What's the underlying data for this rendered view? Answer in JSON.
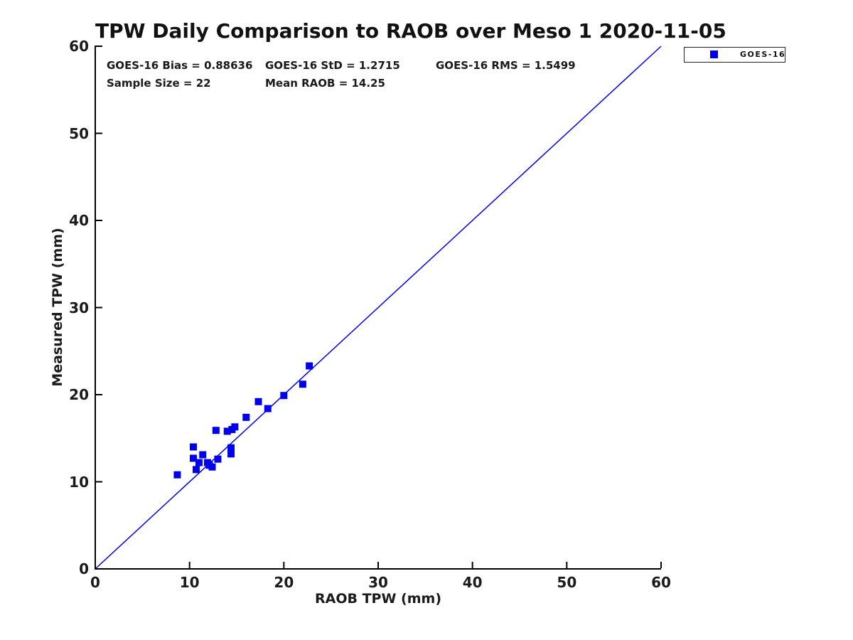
{
  "title": "TPW Daily Comparison to RAOB over Meso 1 2020-11-05",
  "stats": [
    {
      "text": "GOES-16 Bias = 0.88636"
    },
    {
      "text": "GOES-16 StD = 1.2715"
    },
    {
      "text": "GOES-16 RMS = 1.5499"
    },
    {
      "text": "Sample Size = 22"
    },
    {
      "text": "Mean RAOB = 14.25"
    }
  ],
  "legend": {
    "label": "GOES-16",
    "marker_color": "#0000ee",
    "position": "top-right-outside"
  },
  "colors": {
    "series_blue": "#0000ee",
    "axis": "#000000",
    "text": "#1a1a1a",
    "background": "#ffffff"
  },
  "chart_data": {
    "type": "scatter",
    "title": "TPW Daily Comparison to RAOB over Meso 1 2020-11-05",
    "xlabel": "RAOB TPW (mm)",
    "ylabel": "Measured TPW (mm)",
    "xlim": [
      0,
      60
    ],
    "ylim": [
      0,
      60
    ],
    "x_ticks": [
      0,
      10,
      20,
      30,
      40,
      50,
      60
    ],
    "y_ticks": [
      0,
      10,
      20,
      30,
      40,
      50,
      60
    ],
    "grid": false,
    "tick_direction": "in",
    "series": [
      {
        "name": "GOES-16",
        "marker": "filled-square",
        "color": "#0000ee",
        "points": [
          [
            8.7,
            10.8
          ],
          [
            10.4,
            14.0
          ],
          [
            10.4,
            12.7
          ],
          [
            10.7,
            11.4
          ],
          [
            11.0,
            12.2
          ],
          [
            11.4,
            13.1
          ],
          [
            11.9,
            12.2
          ],
          [
            12.1,
            11.9
          ],
          [
            12.4,
            11.7
          ],
          [
            13.0,
            12.6
          ],
          [
            12.8,
            15.9
          ],
          [
            14.0,
            15.8
          ],
          [
            14.5,
            16.0
          ],
          [
            14.8,
            16.3
          ],
          [
            14.4,
            13.9
          ],
          [
            14.4,
            13.2
          ],
          [
            16.0,
            17.4
          ],
          [
            17.3,
            19.2
          ],
          [
            18.3,
            18.4
          ],
          [
            20.0,
            19.9
          ],
          [
            22.0,
            21.2
          ],
          [
            22.7,
            23.3
          ]
        ]
      }
    ],
    "reference_line": {
      "from": [
        0,
        0
      ],
      "to": [
        60,
        60
      ],
      "color": "#0000ee",
      "meaning": "1:1 identity line"
    },
    "annotations": [
      "GOES-16 Bias = 0.88636",
      "GOES-16 StD = 1.2715",
      "GOES-16 RMS = 1.5499",
      "Sample Size = 22",
      "Mean RAOB = 14.25"
    ]
  }
}
